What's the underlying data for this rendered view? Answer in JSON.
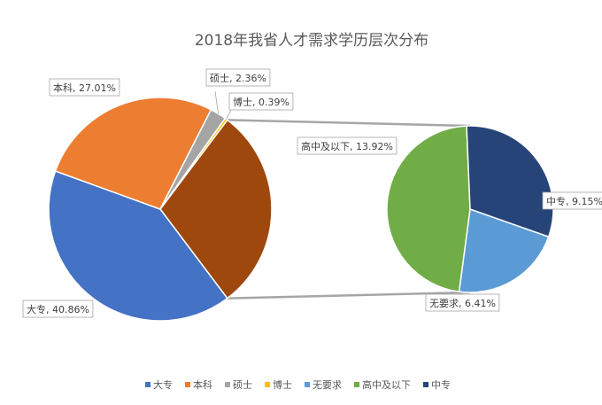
{
  "chart_data": {
    "type": "pie",
    "subtype": "pie-of-pie",
    "title": "2018年我省人才需求学历层次分布",
    "label_separator": ", ",
    "legend_position": "bottom",
    "series": [
      {
        "name": "大专",
        "value": 40.86,
        "label_text": "40.86%",
        "color": "#4472C4",
        "group": "main"
      },
      {
        "name": "本科",
        "value": 27.01,
        "label_text": "27.01%",
        "color": "#ED7D31",
        "group": "main"
      },
      {
        "name": "硕士",
        "value": 2.36,
        "label_text": "2.36%",
        "color": "#A5A5A5",
        "group": "main"
      },
      {
        "name": "博士",
        "value": 0.39,
        "label_text": "0.39%",
        "color": "#FFC000",
        "group": "main"
      },
      {
        "name": "无要求",
        "value": 6.41,
        "label_text": "6.41%",
        "color": "#5B9BD5",
        "group": "secondary"
      },
      {
        "name": "高中及以下",
        "value": 13.92,
        "label_text": "13.92%",
        "color": "#70AD47",
        "group": "secondary"
      },
      {
        "name": "中专",
        "value": 9.15,
        "label_text": "9.15%",
        "color": "#264478",
        "group": "secondary"
      }
    ],
    "other_slice_color": "#9E480E"
  }
}
